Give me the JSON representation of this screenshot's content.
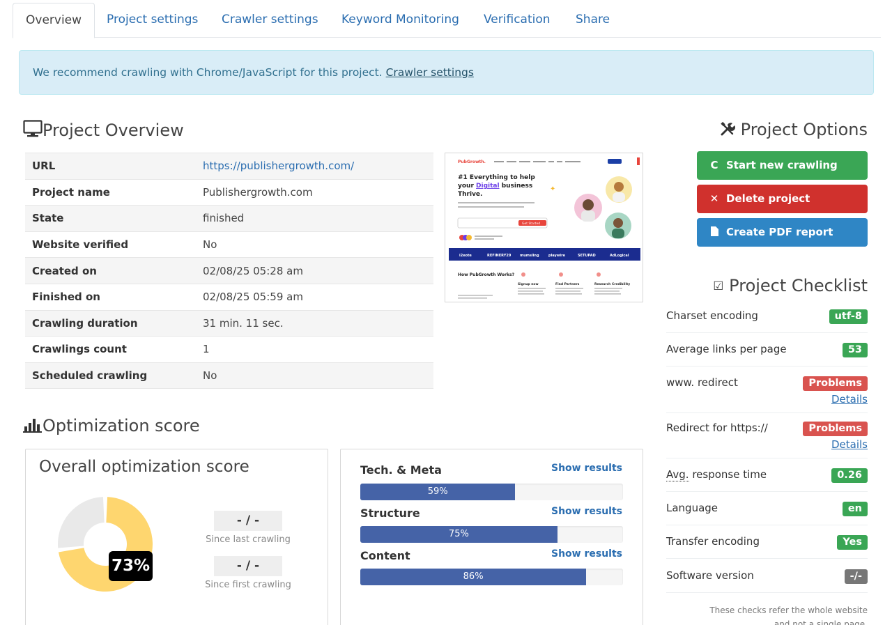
{
  "tabs": [
    "Overview",
    "Project settings",
    "Crawler settings",
    "Keyword Monitoring",
    "Verification",
    "Share"
  ],
  "alert": {
    "text": "We recommend crawling with Chrome/JavaScript for this project. ",
    "link": "Crawler settings"
  },
  "overview": {
    "title": "Project Overview",
    "rows": [
      {
        "key": "URL",
        "value": "https://publishergrowth.com/"
      },
      {
        "key": "Project name",
        "value": "Publishergrowth.com"
      },
      {
        "key": "State",
        "value": "finished"
      },
      {
        "key": "Website verified",
        "value": "No"
      },
      {
        "key": "Created on",
        "value": "02/08/25 05:28 am"
      },
      {
        "key": "Finished on",
        "value": "02/08/25 05:59 am"
      },
      {
        "key": "Crawling duration",
        "value": "31 min. 11 sec."
      },
      {
        "key": "Crawlings count",
        "value": "1"
      },
      {
        "key": "Scheduled crawling",
        "value": "No"
      }
    ]
  },
  "thumbnail": {
    "logo": "PubGrowth.",
    "headline_1": "#1 Everything to help",
    "headline_2a": "your ",
    "headline_2b": "Digital",
    "headline_2c": " business",
    "headline_3": "Thrive.",
    "cta": "Get Started",
    "brands": [
      "i2eote",
      "REFINERY29",
      "mumsling",
      "playwire",
      "SETUPAD",
      "AdLogical"
    ],
    "bottom_title": "How PubGrowth Works?",
    "bottom_cols": [
      "Signup now",
      "Find Partners",
      "Research Credibility"
    ]
  },
  "options": {
    "title": "Project Options",
    "buttons": [
      "Start new crawling",
      "Delete project",
      "Create PDF report"
    ]
  },
  "checklist": {
    "title": "Project Checklist",
    "items": [
      {
        "label": "Charset encoding",
        "value": "utf-8",
        "color": "#3aa655"
      },
      {
        "label": "Average links per page",
        "value": "53",
        "color": "#3aa655"
      },
      {
        "label": "www. redirect",
        "value": "Problems",
        "color": "#d9534f",
        "details": "Details"
      },
      {
        "label": "Redirect for https://",
        "value": "Problems",
        "color": "#d9534f",
        "details": "Details"
      },
      {
        "label_abbr": "Avg.",
        "label_rest": " response time",
        "value": "0.26",
        "color": "#3aa655"
      },
      {
        "label": "Language",
        "value": "en",
        "color": "#3aa655"
      },
      {
        "label": "Transfer encoding",
        "value": "Yes",
        "color": "#3aa655"
      },
      {
        "label": "Software version",
        "value": "-/-",
        "color": "#777777"
      }
    ],
    "note_1": "These checks refer the whole website",
    "note_2": "and not a single page."
  },
  "score": {
    "section_title": "Optimization score",
    "panel_title": "Overall optimization score",
    "overall": 73,
    "overall_label": "73%",
    "since_last": "- / -",
    "since_last_caption": "Since last crawling",
    "since_first": "- / -",
    "since_first_caption": "Since first crawling",
    "categories": [
      {
        "name": "Tech. & Meta",
        "value": 59,
        "label": "59%",
        "link": "Show results"
      },
      {
        "name": "Structure",
        "value": 75,
        "label": "75%",
        "link": "Show results"
      },
      {
        "name": "Content",
        "value": 86,
        "label": "86%",
        "link": "Show results"
      }
    ],
    "colors": {
      "filled": "#fed66f",
      "empty": "#e9e9e9",
      "bar": "#4563a7"
    }
  }
}
